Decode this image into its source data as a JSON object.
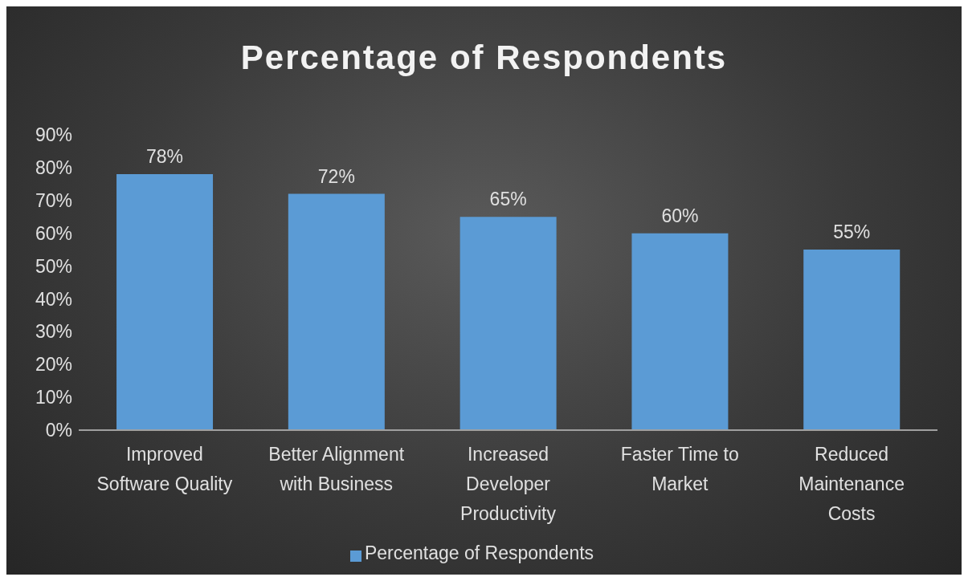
{
  "chart_data": {
    "type": "bar",
    "title": "Percentage of Respondents",
    "categories": [
      "Improved Software Quality",
      "Better Alignment with Business",
      "Increased Developer Productivity",
      "Faster Time to Market",
      "Reduced Maintenance Costs"
    ],
    "series": [
      {
        "name": "Percentage of Respondents",
        "color": "#5b9bd5",
        "values": [
          78,
          72,
          65,
          60,
          55
        ],
        "value_labels": [
          "78%",
          "72%",
          "65%",
          "60%",
          "55%"
        ]
      }
    ],
    "ylim": [
      0,
      90
    ],
    "yticks": [
      {
        "value": 0,
        "label": "0%"
      },
      {
        "value": 10,
        "label": "10%"
      },
      {
        "value": 20,
        "label": "20%"
      },
      {
        "value": 30,
        "label": "30%"
      },
      {
        "value": 40,
        "label": "40%"
      },
      {
        "value": 50,
        "label": "50%"
      },
      {
        "value": 60,
        "label": "60%"
      },
      {
        "value": 70,
        "label": "70%"
      },
      {
        "value": 80,
        "label": "80%"
      },
      {
        "value": 90,
        "label": "90%"
      }
    ],
    "grid": false,
    "legend": "bottom"
  }
}
